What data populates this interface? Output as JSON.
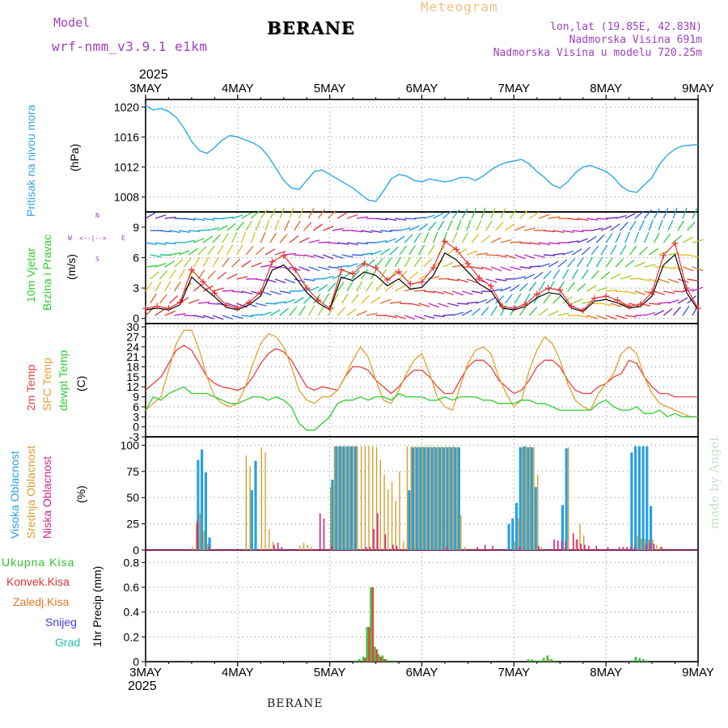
{
  "header": {
    "model_label": "Model",
    "model_name": "wrf-nmm_v3.9.1 e1km",
    "station_title": "BERANE",
    "meteogram_label": "Meteogram",
    "lonlat": "lon,lat (19.85E, 42.83N)",
    "elevation": "Nadmorska Visina 691m",
    "model_elevation": "Nadmorska Visina u modelu 720.25m"
  },
  "x_axis": {
    "year": "2025",
    "ticks": [
      "3MAY",
      "4MAY",
      "5MAY",
      "6MAY",
      "7MAY",
      "8MAY",
      "9MAY"
    ]
  },
  "panels": {
    "pressure": {
      "label": "Pritisak na nivou mora",
      "unit": "(hPa)",
      "yticks": [
        "1008",
        "1012",
        "1016",
        "1020"
      ]
    },
    "wind": {
      "label1": "10m Vjetar",
      "label2": "Brzina i Pravac",
      "unit": "(m/s)",
      "yticks": [
        "0",
        "3",
        "6",
        "9"
      ],
      "compass": {
        "n": "N",
        "s": "S",
        "w": "W",
        "e": "E"
      }
    },
    "temp": {
      "label1": "2m Temp",
      "label2": "SFC Temp",
      "label3": "dewpt Temp",
      "unit": "(C)",
      "yticks": [
        "-3",
        "0",
        "3",
        "6",
        "9",
        "12",
        "15",
        "18",
        "21",
        "24",
        "27",
        "30"
      ]
    },
    "cloud": {
      "label1": "Visoka Oblacnost",
      "label2": "Srednja Oblacnost",
      "label3": "Niska Oblacnost",
      "unit": "(%)",
      "yticks": [
        "0",
        "25",
        "50",
        "75",
        "100"
      ]
    },
    "precip": {
      "unit": "1hr Precip (mm)",
      "yticks": [
        "0",
        "0.2",
        "0.4",
        "0.6",
        "0.8"
      ],
      "legend": [
        "Ukupna Kisa",
        "Konvek.Kisa",
        "Zaledj.Kisa",
        "Snijeg",
        "Grad"
      ]
    }
  },
  "watermark": "made by Angel",
  "footer_title": "BERANE",
  "colors": {
    "pressure": "#2ea8e8",
    "t2m": "#e84040",
    "tsfc": "#e0a030",
    "dewpt": "#30cc30",
    "high_cloud": "#2aa0e0",
    "mid_cloud": "#d4a030",
    "low_cloud": "#d81e8c",
    "rain_total": "#30c030",
    "rain_conv": "#e83030",
    "rain_frz": "#e07820",
    "snow": "#4040e0",
    "hail": "#20c0b0",
    "model_purple": "#a040c0",
    "meteogram_orange": "#f0c080"
  },
  "chart_data": [
    {
      "type": "line",
      "name_key": "pressure",
      "ylim": [
        1006,
        1021
      ],
      "x_hours": [
        0,
        2,
        4,
        6,
        8,
        10,
        12,
        14,
        16,
        18,
        20,
        22,
        24,
        26,
        28,
        30,
        32,
        34,
        36,
        38,
        40,
        42,
        44,
        46,
        48,
        50,
        52,
        54,
        56,
        58,
        60,
        62,
        64,
        66,
        68,
        70,
        72,
        74,
        76,
        78,
        80,
        82,
        84,
        86,
        88,
        90,
        92,
        94,
        96,
        98,
        100,
        102,
        104,
        106,
        108,
        110,
        112,
        114,
        116,
        118,
        120,
        122,
        124,
        126,
        128,
        130,
        132,
        134,
        136,
        138,
        140,
        142,
        144
      ],
      "values": [
        1020.2,
        1019.6,
        1019.8,
        1019.4,
        1018.6,
        1017.2,
        1015.4,
        1014.2,
        1013.8,
        1014.6,
        1015.6,
        1016.2,
        1016.0,
        1015.6,
        1015.2,
        1014.6,
        1013.4,
        1011.8,
        1010.2,
        1009.2,
        1009.0,
        1010.2,
        1011.4,
        1011.6,
        1011.0,
        1010.4,
        1009.8,
        1009.2,
        1008.4,
        1007.6,
        1007.4,
        1008.8,
        1010.4,
        1011.0,
        1010.8,
        1010.2,
        1010.0,
        1010.4,
        1010.2,
        1010.0,
        1010.2,
        1010.6,
        1010.6,
        1010.2,
        1010.8,
        1011.6,
        1012.2,
        1012.6,
        1012.8,
        1013.0,
        1012.4,
        1011.4,
        1010.6,
        1009.6,
        1009.2,
        1010.0,
        1011.2,
        1012.0,
        1012.2,
        1011.8,
        1011.4,
        1010.6,
        1009.4,
        1008.8,
        1008.6,
        1009.6,
        1010.6,
        1012.4,
        1013.6,
        1014.4,
        1014.8,
        1014.9,
        1015.0
      ]
    },
    {
      "type": "line",
      "name_key": "wind_speed",
      "ylim": [
        -0.5,
        10.5
      ],
      "x_hours": [
        0,
        3,
        6,
        9,
        12,
        15,
        18,
        21,
        24,
        27,
        30,
        33,
        36,
        39,
        42,
        45,
        48,
        51,
        54,
        57,
        60,
        63,
        66,
        69,
        72,
        75,
        78,
        81,
        84,
        87,
        90,
        93,
        96,
        99,
        102,
        105,
        108,
        111,
        114,
        117,
        120,
        123,
        126,
        129,
        132,
        135,
        138,
        141,
        144
      ],
      "values": [
        1.0,
        1.2,
        1.0,
        1.6,
        4.8,
        3.6,
        2.5,
        1.3,
        1.0,
        1.6,
        2.6,
        5.6,
        6.2,
        4.8,
        3.0,
        1.8,
        1.0,
        4.8,
        4.4,
        5.4,
        5.0,
        3.8,
        4.6,
        3.4,
        3.6,
        5.0,
        7.6,
        6.8,
        5.4,
        4.0,
        3.2,
        1.2,
        1.0,
        1.4,
        2.4,
        3.0,
        2.8,
        1.2,
        0.8,
        2.0,
        2.2,
        1.8,
        1.2,
        1.4,
        2.6,
        6.2,
        7.4,
        3.0,
        1.0
      ]
    },
    {
      "type": "line",
      "name_key": "temperature",
      "ylim": [
        -3,
        31
      ],
      "x_hours": [
        0,
        2,
        4,
        6,
        8,
        10,
        12,
        14,
        16,
        18,
        20,
        22,
        24,
        26,
        28,
        30,
        32,
        34,
        36,
        38,
        40,
        42,
        44,
        46,
        48,
        50,
        52,
        54,
        56,
        58,
        60,
        62,
        64,
        66,
        68,
        70,
        72,
        74,
        76,
        78,
        80,
        82,
        84,
        86,
        88,
        90,
        92,
        94,
        96,
        98,
        100,
        102,
        104,
        106,
        108,
        110,
        112,
        114,
        116,
        118,
        120,
        122,
        124,
        126,
        128,
        130,
        132,
        134,
        136,
        138,
        140,
        142,
        144
      ],
      "series": [
        {
          "key": "t2m",
          "values": [
            11,
            13,
            15,
            19,
            23,
            24.5,
            23,
            19,
            15,
            13,
            12,
            11.5,
            11,
            12,
            15,
            19,
            22,
            23.5,
            22.5,
            20,
            16,
            12,
            11,
            12,
            11.5,
            11,
            15,
            18,
            18,
            17,
            14,
            12,
            10,
            12,
            15,
            17,
            17,
            15,
            12,
            10,
            10,
            14,
            18,
            20,
            20,
            18,
            14,
            12,
            10,
            11,
            14,
            18,
            20,
            20,
            18,
            14,
            11,
            10,
            10,
            12,
            13,
            15,
            16,
            20,
            19,
            15,
            12,
            10,
            10,
            9,
            9,
            9,
            9
          ]
        },
        {
          "key": "tsfc",
          "values": [
            5,
            7,
            9,
            17,
            25,
            29,
            29,
            23,
            15,
            9,
            7,
            6,
            7,
            12,
            19,
            25,
            28,
            27,
            24,
            18,
            11,
            8,
            7,
            9,
            9,
            11,
            15,
            20,
            24,
            21,
            14,
            8,
            7,
            11,
            16,
            20,
            22,
            16,
            9,
            6,
            5,
            12,
            19,
            23,
            24,
            22,
            15,
            10,
            6,
            8,
            17,
            23,
            27,
            25,
            20,
            13,
            8,
            6,
            5,
            10,
            13,
            16,
            22,
            24,
            22,
            15,
            10,
            7,
            6,
            5,
            4,
            3,
            3
          ]
        },
        {
          "key": "dewpt",
          "values": [
            5,
            9,
            8,
            10,
            11,
            12,
            10,
            10,
            10,
            9,
            8,
            7,
            7,
            8,
            9,
            9,
            8,
            9,
            8,
            6,
            1,
            -1,
            -1,
            1,
            3,
            7,
            8,
            8,
            9,
            8,
            9,
            9,
            8,
            10,
            9,
            9,
            9,
            8,
            8,
            9,
            8,
            9,
            9,
            9,
            8,
            8,
            7,
            7,
            7,
            8,
            8,
            7,
            7,
            6,
            5,
            5,
            5,
            5,
            5,
            7,
            8,
            6,
            5,
            5,
            6,
            4,
            4,
            5,
            3,
            4,
            3,
            3,
            3
          ]
        }
      ]
    },
    {
      "type": "bar",
      "name_key": "cloud_cover",
      "ylim": [
        0,
        100
      ],
      "series": [
        {
          "key": "high_cloud",
          "x_hours": [
            14,
            15,
            16,
            17,
            28,
            29,
            49,
            50,
            51,
            52,
            53,
            54,
            55,
            69,
            70,
            71,
            72,
            73,
            74,
            75,
            76,
            77,
            78,
            79,
            80,
            81,
            82,
            95,
            96,
            97,
            98,
            99,
            100,
            101,
            102,
            109,
            110,
            127,
            128,
            129,
            130,
            131,
            132
          ],
          "values": [
            86,
            96,
            74,
            12,
            57,
            85,
            67,
            99,
            99,
            99,
            99,
            99,
            99,
            57,
            98,
            98,
            98,
            98,
            98,
            98,
            98,
            98,
            98,
            98,
            98,
            98,
            98,
            25,
            30,
            45,
            98,
            99,
            98,
            98,
            60,
            43,
            97,
            93,
            99,
            99,
            99,
            99,
            42
          ]
        },
        {
          "key": "mid_cloud",
          "x_hours": [
            12,
            13,
            14,
            15,
            16,
            26,
            27,
            30,
            31,
            32,
            33,
            40,
            41,
            42,
            43,
            48,
            49,
            50,
            51,
            52,
            53,
            54,
            55,
            56,
            57,
            58,
            59,
            60,
            61,
            62,
            63,
            64,
            65,
            66,
            67,
            68,
            69,
            70,
            71,
            72,
            73,
            74,
            75,
            76,
            77,
            78,
            79,
            80,
            81,
            82,
            83,
            96,
            97,
            98,
            99,
            100,
            101,
            102,
            103,
            109,
            110,
            112,
            113,
            114,
            128,
            129,
            130,
            131,
            132,
            133,
            134
          ],
          "values": [
            3,
            25,
            35,
            18,
            6,
            90,
            80,
            98,
            93,
            20,
            8,
            4,
            7,
            5,
            3,
            60,
            99,
            99,
            99,
            99,
            99,
            99,
            99,
            99,
            99,
            99,
            99,
            98,
            86,
            72,
            58,
            65,
            47,
            75,
            8,
            99,
            99,
            99,
            99,
            99,
            99,
            99,
            99,
            99,
            99,
            99,
            99,
            99,
            98,
            33,
            3,
            8,
            30,
            98,
            99,
            99,
            98,
            72,
            3,
            2,
            98,
            10,
            25,
            14,
            13,
            11,
            10,
            10,
            10,
            5,
            3
          ]
        },
        {
          "key": "low_cloud",
          "x_hours": [
            13,
            16,
            33,
            34,
            35,
            45,
            46,
            48,
            57,
            58,
            59,
            60,
            62,
            64,
            65,
            78,
            86,
            88,
            90,
            97,
            102,
            106,
            107,
            108,
            109,
            111,
            112,
            113,
            114,
            115,
            117,
            120,
            123,
            124,
            125,
            126,
            127,
            130,
            131,
            132,
            134
          ],
          "values": [
            28,
            3,
            5,
            7,
            3,
            35,
            30,
            4,
            3,
            3,
            20,
            35,
            15,
            5,
            4,
            3,
            3,
            5,
            4,
            3,
            4,
            10,
            9,
            9,
            8,
            16,
            10,
            6,
            5,
            4,
            4,
            3,
            3,
            3,
            3,
            3,
            3,
            5,
            7,
            6,
            3
          ]
        }
      ]
    },
    {
      "type": "bar",
      "name_key": "precip",
      "ylim": [
        0,
        0.9
      ],
      "series": [
        {
          "key": "rain_total",
          "x_hours": [
            55,
            56,
            57,
            58,
            59,
            60,
            61,
            62,
            63,
            64,
            65,
            66,
            67,
            100,
            101,
            102,
            103,
            104,
            105,
            106,
            107,
            127,
            128,
            129,
            130,
            131
          ],
          "values": [
            0.01,
            0.02,
            0.04,
            0.28,
            0.6,
            0.12,
            0.06,
            0.05,
            0.02,
            0.01,
            0.01,
            0.0,
            0.0,
            0.02,
            0.02,
            0.01,
            0.01,
            0.03,
            0.05,
            0.02,
            0.01,
            0.01,
            0.04,
            0.03,
            0.02,
            0.01
          ]
        },
        {
          "key": "rain_conv",
          "x_hours": [
            57,
            58,
            59,
            60,
            61,
            62
          ],
          "values": [
            0.03,
            0.28,
            0.6,
            0.1,
            0.04,
            0.02
          ]
        },
        {
          "key": "rain_frz",
          "x_hours": [
            105
          ],
          "values": [
            0.02
          ]
        }
      ]
    }
  ]
}
